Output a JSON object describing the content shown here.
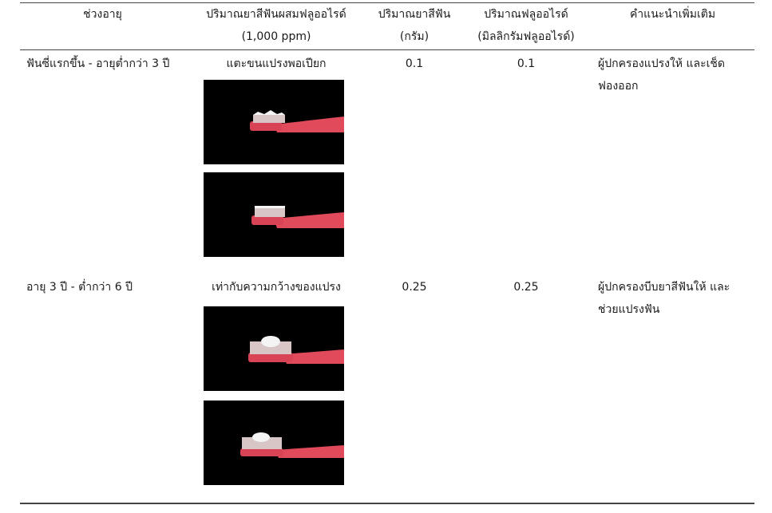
{
  "table": {
    "headers": {
      "age_range": "ช่วงอายุ",
      "paste_amount_line1": "ปริมาณยาสีฟันผสมฟลูออไรด์",
      "paste_amount_line2": "(1,000 ppm)",
      "paste_grams_line1": "ปริมาณยาสีฟัน",
      "paste_grams_line2": "(กรัม)",
      "fluoride_line1": "ปริมาณฟลูออไรด์",
      "fluoride_line2": "(มิลลิกรัมฟลูออไรด์)",
      "advice": "คำแนะนำเพิ่มเติม"
    },
    "rows": [
      {
        "age_range": "ฟันซี่แรกขึ้น - อายุต่ำกว่า 3 ปี",
        "paste_amount": "แตะขนแปรงพอเปียก",
        "paste_grams": "0.1",
        "fluoride_mg": "0.1",
        "advice_line1": "ผู้ปกครองแปรงให้ และเช็ด",
        "advice_line2": "ฟองออก"
      },
      {
        "age_range": "อายุ 3 ปี - ต่ำกว่า 6 ปี",
        "paste_amount": "เท่ากับความกว้างของแปรง",
        "paste_grams": "0.25",
        "fluoride_mg": "0.25",
        "advice_line1": "ผู้ปกครองบีบยาสีฟันให้ และ",
        "advice_line2": "ช่วยแปรงฟัน"
      }
    ]
  },
  "colors": {
    "background": "#ffffff",
    "rule": "#444444",
    "photo_background": "#000000",
    "toothbrush_handle": "#e04a5a",
    "bristles": "#d8c6c6",
    "toothpaste": "#f4f4f4"
  },
  "images": [
    "toothbrush-smear-top-photo",
    "toothbrush-smear-side-photo",
    "toothbrush-pea-top-photo",
    "toothbrush-pea-side-photo"
  ]
}
